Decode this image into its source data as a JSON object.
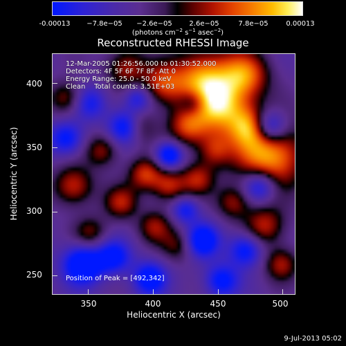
{
  "colorbar": {
    "ticks": [
      "-0.00013",
      "−7.8e−05",
      "−2.6e−05",
      "2.6e−05",
      "7.8e−05",
      "0.00013"
    ],
    "units_prefix": "(photons cm",
    "units_exp1": "−2",
    "units_mid1": " s",
    "units_exp2": "−1",
    "units_mid2": " asec",
    "units_exp3": "−2",
    "units_suffix": ")"
  },
  "title": "Reconstructed RHESSI Image",
  "info": {
    "time_range": "12-Mar-2005 01:26:56.000 to 01:30:52.000",
    "detectors": "Detectors: 4F 5F 6F 7F 8F, Att 0",
    "energy": "Energy Range: 25.0 - 50.0 keV",
    "clean": "Clean    Total counts: 3.51E+03"
  },
  "peak": "Position of Peak = [492,342]",
  "axes": {
    "xlabel": "Heliocentric X (arcsec)",
    "ylabel": "Heliocentric Y (arcsec)",
    "xticks": [
      "350",
      "400",
      "450",
      "500"
    ],
    "yticks": [
      "400",
      "350",
      "300",
      "250"
    ]
  },
  "footer": "9-Jul-2013 05:02",
  "colors": {
    "background": "#000000",
    "frame": "#dddddd"
  }
}
